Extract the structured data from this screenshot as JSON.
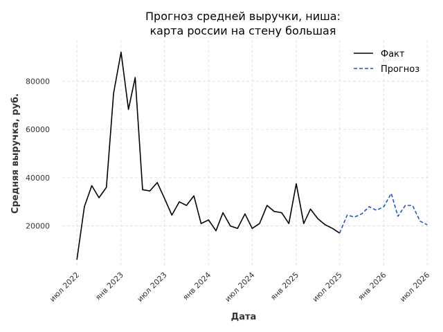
{
  "chart_data": {
    "type": "line",
    "title": [
      "Прогноз средней выручки, ниша:",
      "карта россии на стену большая"
    ],
    "xlabel": "Дата",
    "ylabel": "Средняя выручка, руб.",
    "ylim": [
      3000,
      97000
    ],
    "yticks": [
      20000,
      40000,
      60000,
      80000
    ],
    "xlim": [
      "2022-05-01",
      "2026-07-15"
    ],
    "xticks": [
      {
        "date": "2022-07-01",
        "label": "июл 2022"
      },
      {
        "date": "2023-01-01",
        "label": "янв 2023"
      },
      {
        "date": "2023-07-01",
        "label": "июл 2023"
      },
      {
        "date": "2024-01-01",
        "label": "янв 2024"
      },
      {
        "date": "2024-07-01",
        "label": "июл 2024"
      },
      {
        "date": "2025-01-01",
        "label": "янв 2025"
      },
      {
        "date": "2025-07-01",
        "label": "июл 2025"
      },
      {
        "date": "2026-01-01",
        "label": "янв 2026"
      },
      {
        "date": "2026-07-01",
        "label": "июл 2026"
      }
    ],
    "grid": true,
    "legend_position": "top-right",
    "series": [
      {
        "name": "Факт",
        "color": "#000000",
        "style": "solid",
        "x": [
          "2022-07-01",
          "2022-08-01",
          "2022-09-01",
          "2022-10-01",
          "2022-11-01",
          "2022-12-01",
          "2023-01-01",
          "2023-02-01",
          "2023-03-01",
          "2023-04-01",
          "2023-05-01",
          "2023-06-01",
          "2023-07-01",
          "2023-08-01",
          "2023-09-01",
          "2023-10-01",
          "2023-11-01",
          "2023-12-01",
          "2024-01-01",
          "2024-02-01",
          "2024-03-01",
          "2024-04-01",
          "2024-05-01",
          "2024-06-01",
          "2024-07-01",
          "2024-08-01",
          "2024-09-01",
          "2024-10-01",
          "2024-11-01",
          "2024-12-01",
          "2025-01-01",
          "2025-02-01",
          "2025-03-01",
          "2025-04-01",
          "2025-05-01",
          "2025-06-01",
          "2025-07-01"
        ],
        "values": [
          6000,
          28000,
          36700,
          31700,
          36000,
          75000,
          92000,
          68300,
          81500,
          35000,
          34500,
          38000,
          31500,
          24500,
          30000,
          28500,
          32500,
          21000,
          22500,
          18000,
          25500,
          20000,
          19000,
          25000,
          19000,
          21000,
          28500,
          26000,
          25500,
          21000,
          37500,
          21000,
          27000,
          23000,
          20500,
          19000,
          17000
        ]
      },
      {
        "name": "Прогноз",
        "color": "#1f4fd6",
        "style": "dashed",
        "x": [
          "2025-07-01",
          "2025-08-01",
          "2025-09-01",
          "2025-10-01",
          "2025-11-01",
          "2025-12-01",
          "2026-01-01",
          "2026-02-01",
          "2026-03-01",
          "2026-04-01",
          "2026-05-01",
          "2026-06-01",
          "2026-07-01"
        ],
        "values": [
          17000,
          24500,
          23700,
          25000,
          28000,
          26500,
          28000,
          33500,
          24000,
          28500,
          28500,
          22000,
          20500
        ]
      }
    ]
  }
}
